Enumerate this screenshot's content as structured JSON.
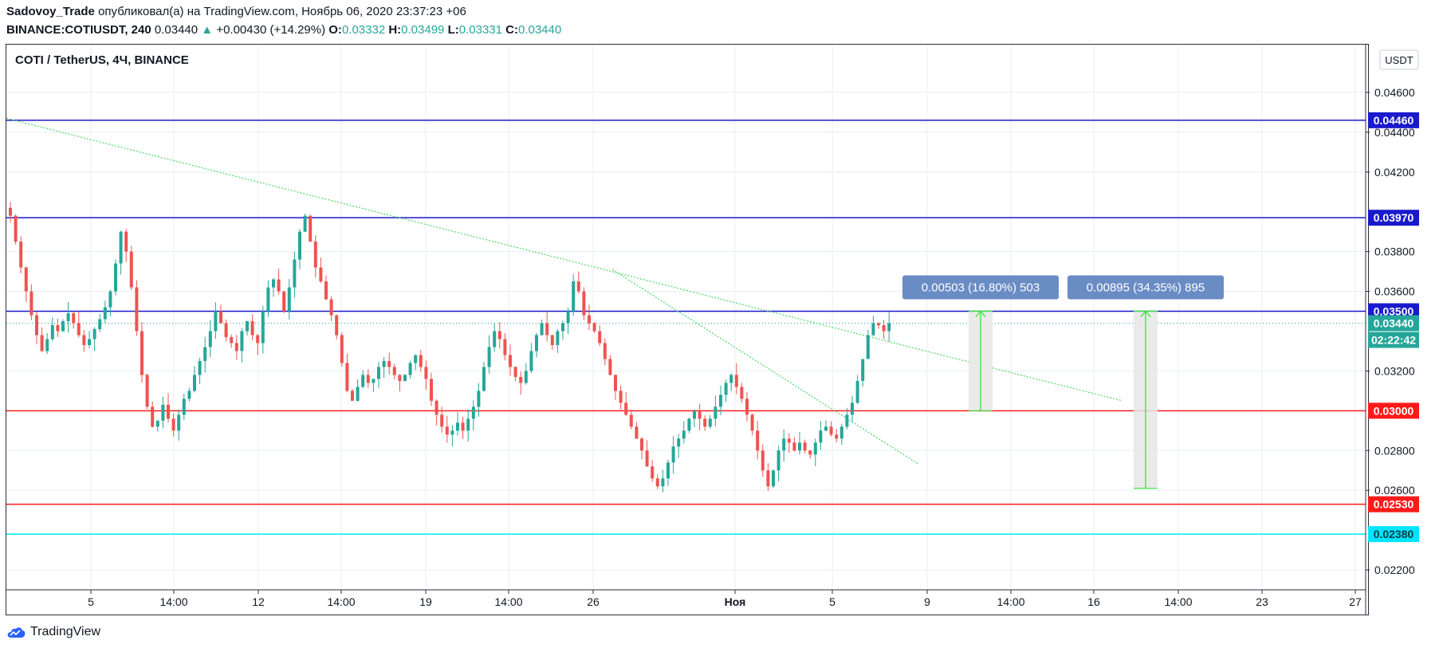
{
  "header": {
    "author": "Sadovoy_Trade",
    "published_text": "опубликовал(а) на TradingView.com, Ноябрь 06, 2020 23:37:23 +06",
    "symbol": "BINANCE:COTIUSDT, 240",
    "last": "0.03440",
    "change_arrow": "▲",
    "change": "+0.00430 (+14.29%)",
    "o_label": "O:",
    "o_value": "0.03332",
    "h_label": "H:",
    "h_value": "0.03499",
    "l_label": "L:",
    "l_value": "0.03331",
    "c_label": "C:",
    "c_value": "0.03440"
  },
  "chart_title": "COTI / TetherUS, 4Ч, BINANCE",
  "currency_button": "USDT",
  "footer": {
    "brand": "TradingView"
  },
  "colors": {
    "bull": "#26a69a",
    "bear": "#ef5350",
    "blue_level": "#1a1acc",
    "red_level": "#ff1a1a",
    "cyan_level": "#00e5ff",
    "trend": "#4cd964",
    "grid": "#e9eef5",
    "measure_bg": "#6a8cc4"
  },
  "chart_data": {
    "type": "candlestick",
    "symbol": "COTI / TetherUS",
    "interval": "4Ч",
    "ylim": [
      0.021,
      0.0484
    ],
    "y_ticks": [
      "0.04600",
      "0.04400",
      "0.04200",
      "0.03800",
      "0.03600",
      "0.03200",
      "0.02800",
      "0.02600",
      "0.02200"
    ],
    "x_ticks": [
      "5",
      "14:00",
      "12",
      "14:00",
      "19",
      "14:00",
      "26",
      "Ноя",
      "5",
      "9",
      "14:00",
      "16",
      "14:00",
      "23",
      "27"
    ],
    "horizontal_levels": [
      {
        "value": 0.0446,
        "label": "0.04460",
        "color": "blue"
      },
      {
        "value": 0.0397,
        "label": "0.03970",
        "color": "blue"
      },
      {
        "value": 0.035,
        "label": "0.03500",
        "color": "blue"
      },
      {
        "value": 0.03,
        "label": "0.03000",
        "color": "red"
      },
      {
        "value": 0.0253,
        "label": "0.02530",
        "color": "red"
      },
      {
        "value": 0.0238,
        "label": "0.02380",
        "color": "cyan"
      }
    ],
    "last_price": {
      "value": 0.0344,
      "label": "0.03440",
      "countdown": "02:22:42"
    },
    "measures": [
      {
        "text": "0.00503 (16.80%) 503",
        "from": 0.03,
        "to": 0.035
      },
      {
        "text": "0.00895 (34.35%) 895",
        "from": 0.0261,
        "to": 0.035
      }
    ],
    "trendlines": [
      {
        "from": [
          0,
          0.0447
        ],
        "to": [
          1400,
          0.0305
        ]
      },
      {
        "from": [
          760,
          0.0371
        ],
        "to": [
          1145,
          0.0273
        ]
      }
    ],
    "close_path": [
      0.0398,
      0.0385,
      0.0372,
      0.036,
      0.0348,
      0.0338,
      0.033,
      0.0336,
      0.0343,
      0.034,
      0.0345,
      0.0349,
      0.0344,
      0.0338,
      0.0333,
      0.0336,
      0.0341,
      0.0346,
      0.0352,
      0.036,
      0.0374,
      0.039,
      0.038,
      0.0362,
      0.034,
      0.0318,
      0.0302,
      0.0292,
      0.0295,
      0.0303,
      0.0296,
      0.029,
      0.0298,
      0.0306,
      0.031,
      0.0318,
      0.0325,
      0.0332,
      0.034,
      0.035,
      0.0344,
      0.0337,
      0.0334,
      0.033,
      0.034,
      0.0345,
      0.0338,
      0.0334,
      0.035,
      0.0362,
      0.0366,
      0.036,
      0.035,
      0.0362,
      0.0376,
      0.039,
      0.0398,
      0.0385,
      0.0372,
      0.0365,
      0.0356,
      0.0348,
      0.0338,
      0.0324,
      0.031,
      0.0305,
      0.0312,
      0.0318,
      0.0314,
      0.0316,
      0.0322,
      0.0325,
      0.0322,
      0.0318,
      0.0315,
      0.0318,
      0.0324,
      0.0328,
      0.0322,
      0.0316,
      0.0305,
      0.0298,
      0.0292,
      0.0288,
      0.029,
      0.0294,
      0.029,
      0.0296,
      0.0302,
      0.031,
      0.0322,
      0.0332,
      0.034,
      0.0336,
      0.0328,
      0.0322,
      0.0317,
      0.0314,
      0.032,
      0.033,
      0.0338,
      0.0344,
      0.0338,
      0.0333,
      0.034,
      0.0344,
      0.035,
      0.0365,
      0.036,
      0.0348,
      0.0344,
      0.034,
      0.0334,
      0.0326,
      0.0318,
      0.031,
      0.0304,
      0.0298,
      0.0292,
      0.0286,
      0.028,
      0.0272,
      0.0266,
      0.0262,
      0.0266,
      0.0274,
      0.0282,
      0.0286,
      0.029,
      0.0296,
      0.03,
      0.0296,
      0.0292,
      0.0296,
      0.0302,
      0.0308,
      0.0314,
      0.0318,
      0.0312,
      0.0306,
      0.0298,
      0.029,
      0.028,
      0.027,
      0.0262,
      0.027,
      0.028,
      0.0286,
      0.0284,
      0.028,
      0.0284,
      0.028,
      0.0278,
      0.0284,
      0.029,
      0.0292,
      0.0288,
      0.0286,
      0.0292,
      0.0298,
      0.0304,
      0.0315,
      0.0326,
      0.0338,
      0.0344,
      0.0343,
      0.034,
      0.0344
    ]
  }
}
